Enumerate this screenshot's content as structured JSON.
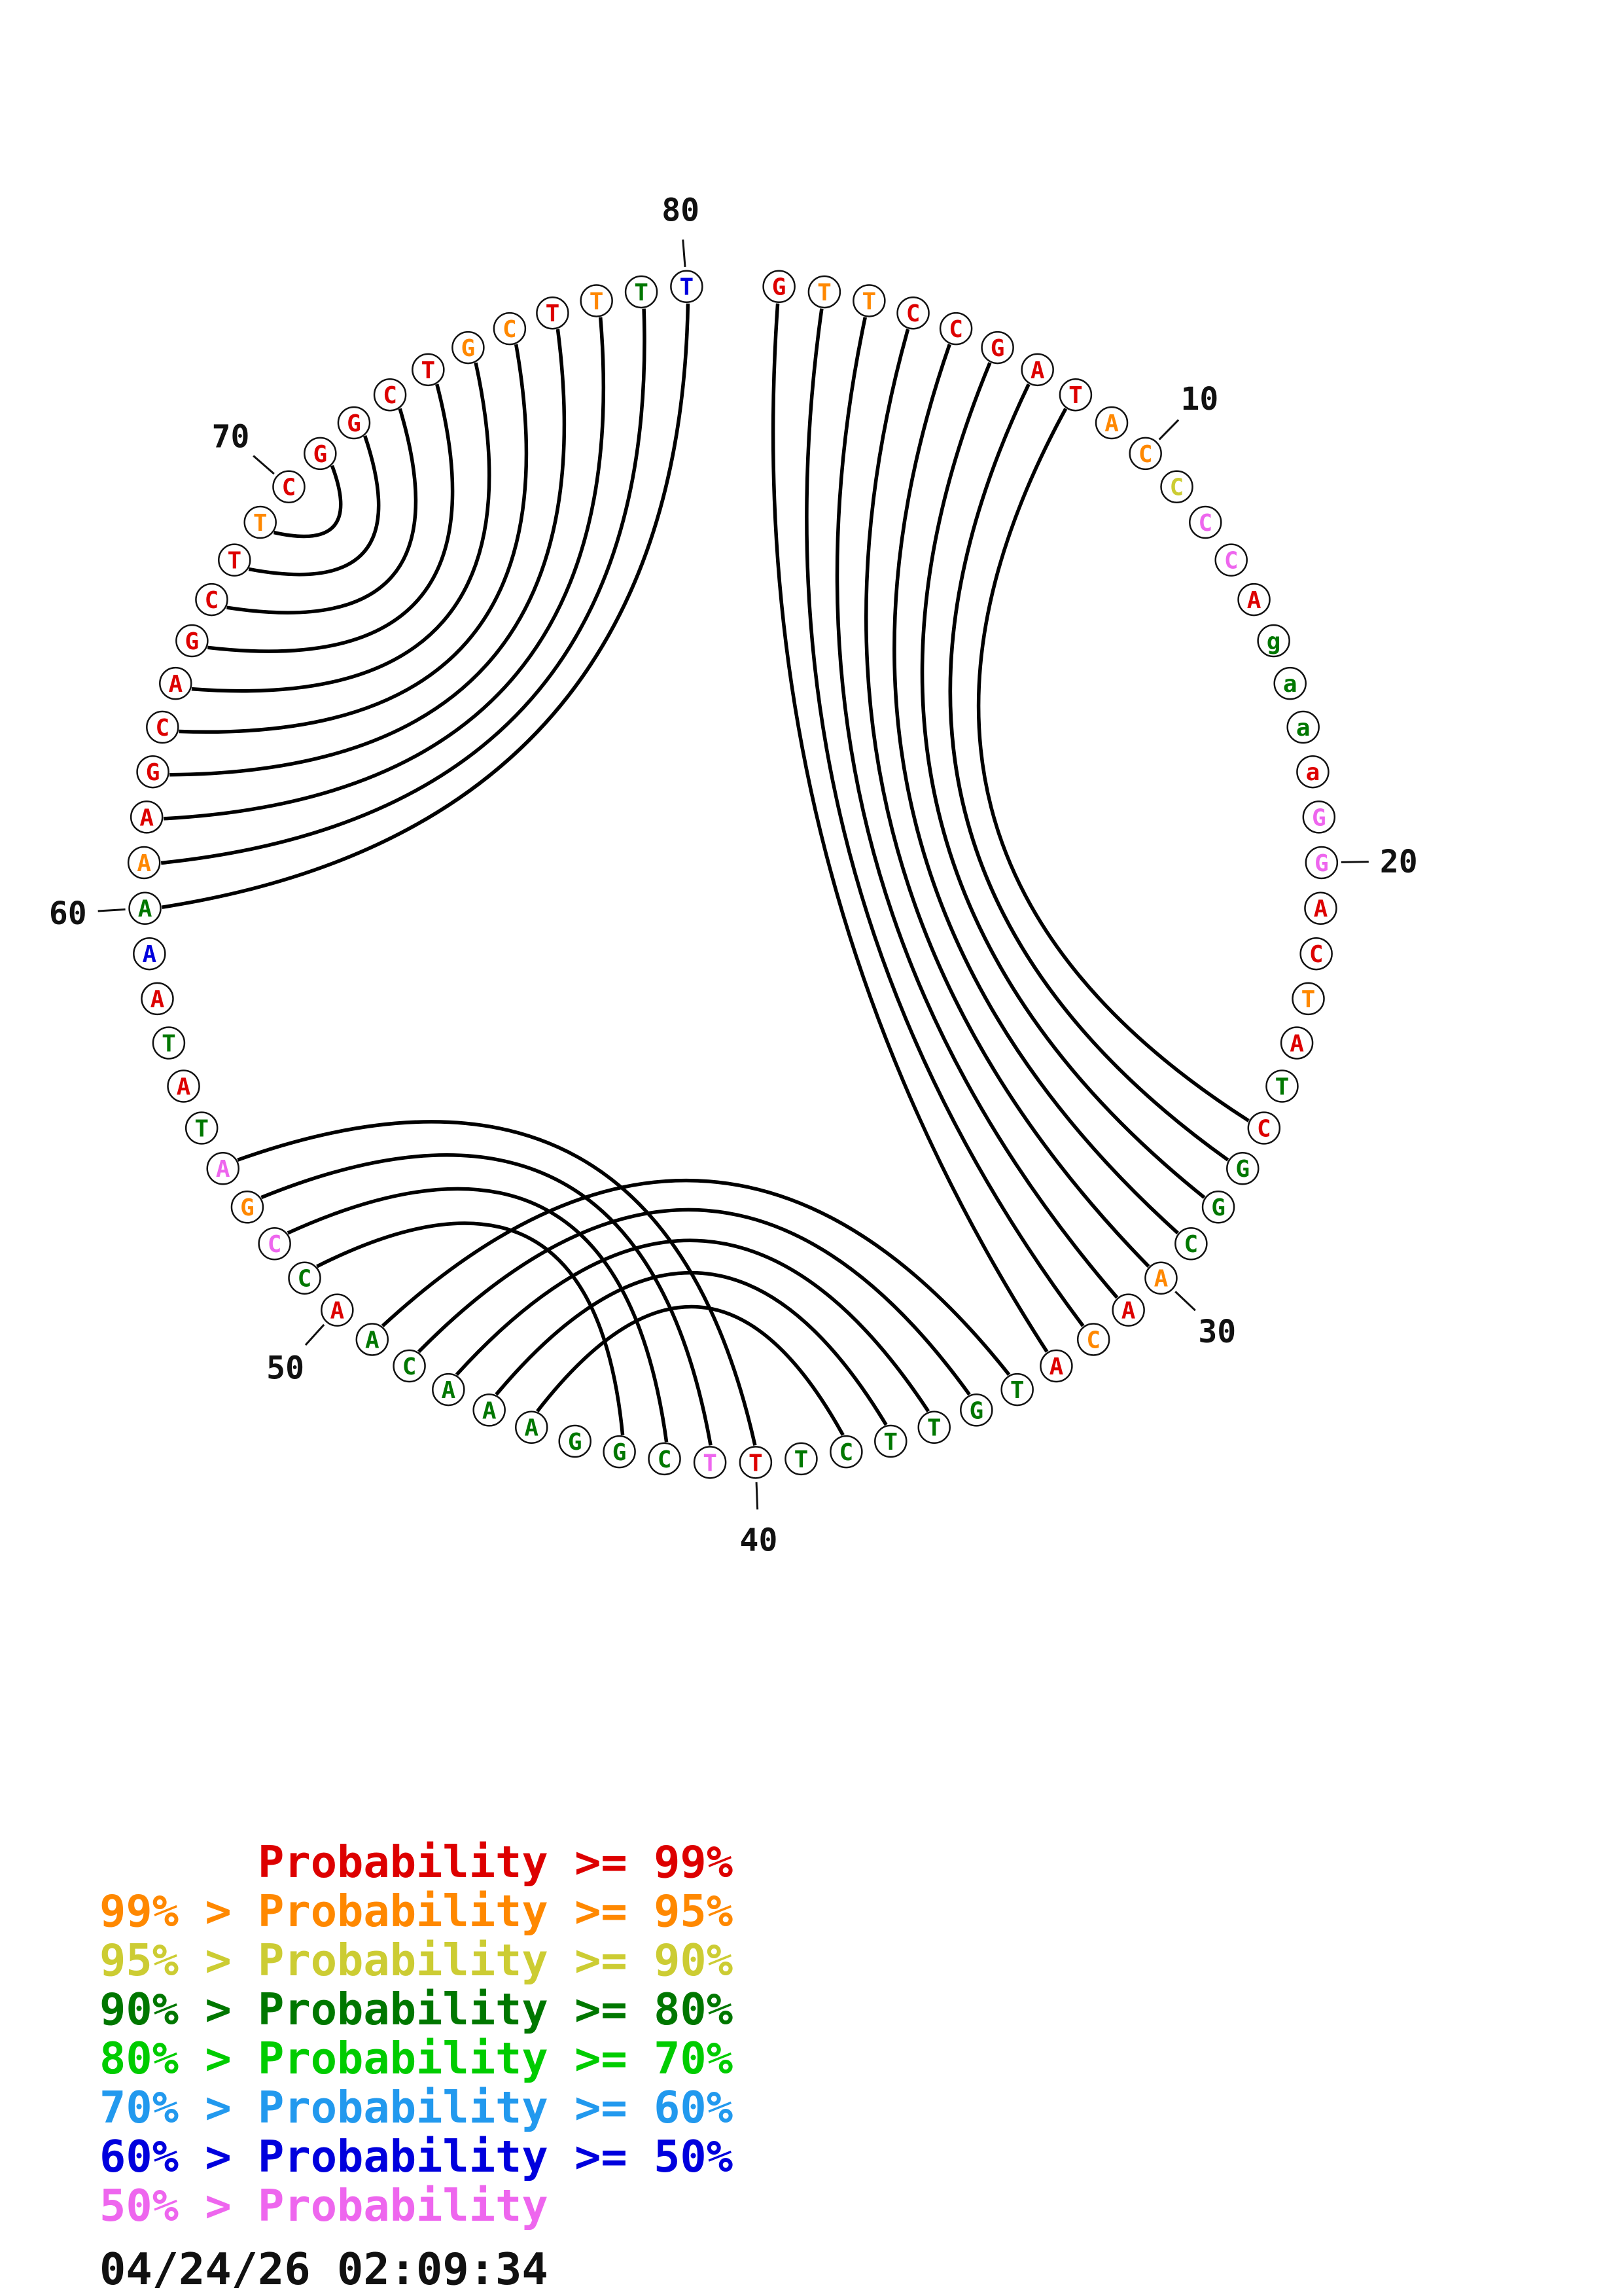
{
  "plot": {
    "sequence": "GTTCCGATACCCCAgaaaGGACTATCGGCAACATGTTCTTTCGGAAACAACCGATATAAAAAGCAGCTTCGGCTGCTTTT",
    "classes": [
      "p99",
      "p95",
      "p95",
      "p99",
      "p99",
      "p99",
      "p99",
      "p99",
      "p95",
      "p95",
      "p90",
      "plt50",
      "plt50",
      "p99",
      "p80",
      "p80",
      "p80",
      "p99",
      "plt50",
      "plt50",
      "p99",
      "p99",
      "p95",
      "p99",
      "p80",
      "p99",
      "p80",
      "p80",
      "p80",
      "p95",
      "p99",
      "p95",
      "p99",
      "p80",
      "p80",
      "p80",
      "p80",
      "p80",
      "p80",
      "p99",
      "plt50",
      "p80",
      "p80",
      "p80",
      "p80",
      "p80",
      "p80",
      "p80",
      "p80",
      "p99",
      "p80",
      "plt50",
      "p95",
      "plt50",
      "p80",
      "p99",
      "p80",
      "p99",
      "p50",
      "p80",
      "p95",
      "p99",
      "p99",
      "p99",
      "p99",
      "p99",
      "p99",
      "p99",
      "p95",
      "p99",
      "p99",
      "p99",
      "p99",
      "p99",
      "p95",
      "p95",
      "p99",
      "p95",
      "p80",
      "p50"
    ],
    "pairs": [
      [
        60,
        80
      ],
      [
        61,
        79
      ],
      [
        62,
        78
      ],
      [
        63,
        77
      ],
      [
        64,
        76
      ],
      [
        65,
        75
      ],
      [
        66,
        74
      ],
      [
        67,
        73
      ],
      [
        68,
        72
      ],
      [
        69,
        71
      ],
      [
        1,
        33
      ],
      [
        2,
        32
      ],
      [
        3,
        31
      ],
      [
        4,
        30
      ],
      [
        5,
        29
      ],
      [
        6,
        28
      ],
      [
        7,
        27
      ],
      [
        8,
        26
      ],
      [
        34,
        49
      ],
      [
        35,
        48
      ],
      [
        36,
        47
      ],
      [
        37,
        46
      ],
      [
        38,
        45
      ],
      [
        40,
        54
      ],
      [
        41,
        53
      ],
      [
        42,
        52
      ],
      [
        43,
        51
      ]
    ],
    "position_labels": [
      10,
      20,
      30,
      40,
      50,
      60,
      70,
      80
    ]
  },
  "legend": {
    "lines": [
      {
        "text": "      Probability >= 99%",
        "class": "p99"
      },
      {
        "text": "99% > Probability >= 95%",
        "class": "p95"
      },
      {
        "text": "95% > Probability >= 90%",
        "class": "p90"
      },
      {
        "text": "90% > Probability >= 80%",
        "class": "p80"
      },
      {
        "text": "80% > Probability >= 70%",
        "class": "p70"
      },
      {
        "text": "70% > Probability >= 60%",
        "class": "p60"
      },
      {
        "text": "60% > Probability >= 50%",
        "class": "p50"
      },
      {
        "text": "50% > Probability",
        "class": "plt50"
      }
    ]
  },
  "timestamp": "04/24/26 02:09:34",
  "palette": {
    "p99": "#dd0000",
    "p95": "#ff8800",
    "p90": "#cccc33",
    "p80": "#007700",
    "p70": "#00cc00",
    "p60": "#2299ee",
    "p50": "#0000dd",
    "plt50": "#ee66ee"
  }
}
